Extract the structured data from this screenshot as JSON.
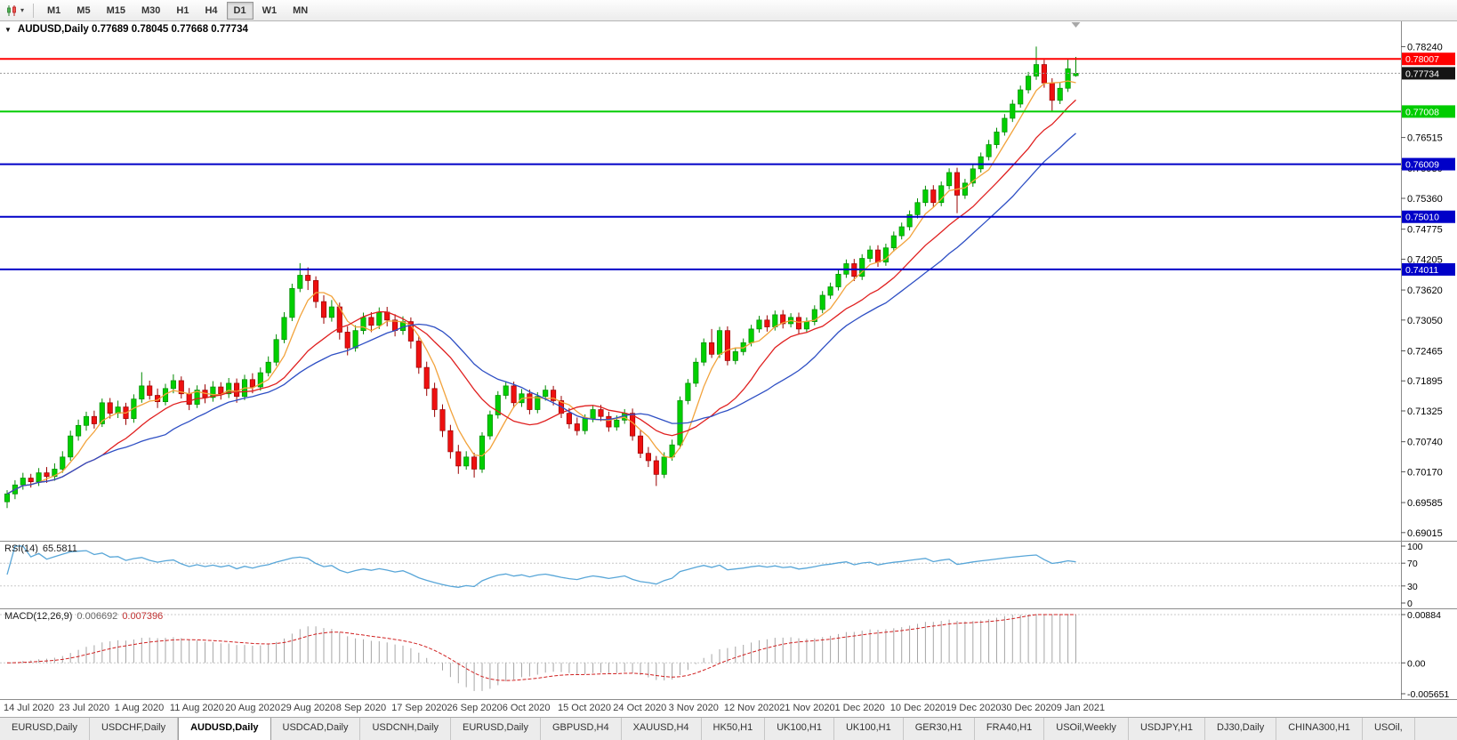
{
  "toolbar": {
    "timeframes": [
      "M1",
      "M5",
      "M15",
      "M30",
      "H1",
      "H4",
      "D1",
      "W1",
      "MN"
    ],
    "selected_timeframe": "D1"
  },
  "chart": {
    "title_text": "AUDUSD,Daily 0.77689 0.78045 0.77668 0.77734",
    "symbol": "AUDUSD,Daily",
    "ohlc": {
      "open": "0.77689",
      "high": "0.78045",
      "low": "0.77668",
      "close": "0.77734"
    }
  },
  "axis": {
    "price_ticks": [
      "0.78240",
      "0.76515",
      "0.75930",
      "0.75360",
      "0.74775",
      "0.74205",
      "0.73620",
      "0.73050",
      "0.72465",
      "0.71895",
      "0.71325",
      "0.70740",
      "0.70170",
      "0.69585",
      "0.69015"
    ],
    "current_price": {
      "value": 0.77734,
      "label": "0.77734",
      "badge_color": "#151515"
    }
  },
  "levels": [
    {
      "value": 0.78007,
      "label": "0.78007",
      "color": "#FF0000"
    },
    {
      "value": 0.77008,
      "label": "0.77008",
      "color": "#00CC00"
    },
    {
      "value": 0.76009,
      "label": "0.76009",
      "color": "#0000C8"
    },
    {
      "value": 0.7501,
      "label": "0.75010",
      "color": "#0000C8"
    },
    {
      "value": 0.74011,
      "label": "0.74011",
      "color": "#0000C8"
    }
  ],
  "chart_data": {
    "type": "candlestick",
    "symbol": "AUDUSD",
    "timeframe": "Daily",
    "y_range": [
      0.6886,
      0.7872
    ],
    "candle_colors": {
      "up": "#00CF00",
      "up_edge": "#008A00",
      "down": "#EE1010",
      "down_edge": "#990000"
    },
    "moving_averages": [
      {
        "name": "MA-fast",
        "period": 5,
        "color": "#F2A33C"
      },
      {
        "name": "MA-mid",
        "period": 13,
        "color": "#E02020"
      },
      {
        "name": "MA-slow",
        "period": 21,
        "color": "#2E4FC4"
      }
    ],
    "date_ticks": [
      {
        "label": "14 Jul 2020",
        "bar": 0
      },
      {
        "label": "23 Jul 2020",
        "bar": 7
      },
      {
        "label": "1 Aug 2020",
        "bar": 14
      },
      {
        "label": "11 Aug 2020",
        "bar": 21
      },
      {
        "label": "20 Aug 2020",
        "bar": 28
      },
      {
        "label": "29 Aug 2020",
        "bar": 35
      },
      {
        "label": "8 Sep 2020",
        "bar": 42
      },
      {
        "label": "17 Sep 2020",
        "bar": 49
      },
      {
        "label": "26 Sep 2020",
        "bar": 56
      },
      {
        "label": "6 Oct 2020",
        "bar": 63
      },
      {
        "label": "15 Oct 2020",
        "bar": 70
      },
      {
        "label": "24 Oct 2020",
        "bar": 77
      },
      {
        "label": "3 Nov 2020",
        "bar": 84
      },
      {
        "label": "12 Nov 2020",
        "bar": 91
      },
      {
        "label": "21 Nov 2020",
        "bar": 98
      },
      {
        "label": "1 Dec 2020",
        "bar": 105
      },
      {
        "label": "10 Dec 2020",
        "bar": 112
      },
      {
        "label": "19 Dec 2020",
        "bar": 119
      },
      {
        "label": "30 Dec 2020",
        "bar": 126
      },
      {
        "label": "9 Jan 2021",
        "bar": 133
      }
    ],
    "indicators": {
      "rsi": {
        "label": "RSI(14)",
        "value": "65.5811",
        "period": 14,
        "levels": [
          70,
          30
        ],
        "axis_labels": [
          "100",
          "70",
          "30",
          "0"
        ],
        "color": "#58A6D8",
        "range": [
          0,
          100
        ]
      },
      "macd": {
        "label": "MACD(12,26,9)",
        "value_main": "0.006692",
        "value_signal": "0.007396",
        "fast": 12,
        "slow": 26,
        "signal": 9,
        "axis_labels": [
          "0.00884",
          "0.00",
          "-0.005651"
        ],
        "range": [
          -0.005651,
          0.00884
        ],
        "hist_color": "#A6A6A6",
        "signal_color": "#D02020"
      }
    },
    "candles": [
      [
        0.696,
        0.6982,
        0.6948,
        0.6975
      ],
      [
        0.6975,
        0.7001,
        0.6965,
        0.6992
      ],
      [
        0.6992,
        0.7015,
        0.6983,
        0.7005
      ],
      [
        0.7005,
        0.7013,
        0.6987,
        0.6998
      ],
      [
        0.6998,
        0.7024,
        0.699,
        0.7015
      ],
      [
        0.7015,
        0.7026,
        0.6996,
        0.7008
      ],
      [
        0.7008,
        0.7033,
        0.7,
        0.7022
      ],
      [
        0.7022,
        0.7056,
        0.7015,
        0.7045
      ],
      [
        0.7045,
        0.7095,
        0.7038,
        0.7085
      ],
      [
        0.7085,
        0.7116,
        0.7076,
        0.7105
      ],
      [
        0.7105,
        0.7131,
        0.7095,
        0.7122
      ],
      [
        0.7122,
        0.7133,
        0.7099,
        0.7108
      ],
      [
        0.7108,
        0.7156,
        0.7102,
        0.7148
      ],
      [
        0.7148,
        0.7157,
        0.7118,
        0.7128
      ],
      [
        0.7128,
        0.7152,
        0.7119,
        0.714
      ],
      [
        0.714,
        0.7148,
        0.7106,
        0.7118
      ],
      [
        0.7118,
        0.7164,
        0.711,
        0.7155
      ],
      [
        0.7155,
        0.7206,
        0.7148,
        0.718
      ],
      [
        0.718,
        0.719,
        0.7154,
        0.7162
      ],
      [
        0.7162,
        0.7175,
        0.7138,
        0.715
      ],
      [
        0.715,
        0.7184,
        0.7143,
        0.7175
      ],
      [
        0.7175,
        0.7202,
        0.7166,
        0.719
      ],
      [
        0.719,
        0.7198,
        0.7156,
        0.7165
      ],
      [
        0.7165,
        0.7176,
        0.7134,
        0.7145
      ],
      [
        0.7145,
        0.7181,
        0.7138,
        0.7172
      ],
      [
        0.7172,
        0.7183,
        0.7147,
        0.7158
      ],
      [
        0.7158,
        0.7189,
        0.715,
        0.7178
      ],
      [
        0.7178,
        0.7187,
        0.7154,
        0.7165
      ],
      [
        0.7165,
        0.7195,
        0.7157,
        0.7185
      ],
      [
        0.7185,
        0.7194,
        0.7148,
        0.716
      ],
      [
        0.716,
        0.7201,
        0.7153,
        0.7192
      ],
      [
        0.7192,
        0.7204,
        0.7166,
        0.7178
      ],
      [
        0.7178,
        0.7215,
        0.7171,
        0.7205
      ],
      [
        0.7205,
        0.7236,
        0.7198,
        0.7225
      ],
      [
        0.7225,
        0.7278,
        0.7218,
        0.7268
      ],
      [
        0.7268,
        0.732,
        0.7261,
        0.731
      ],
      [
        0.731,
        0.7374,
        0.7303,
        0.7365
      ],
      [
        0.7365,
        0.7413,
        0.7358,
        0.739
      ],
      [
        0.739,
        0.7405,
        0.7362,
        0.738
      ],
      [
        0.738,
        0.7388,
        0.7328,
        0.734
      ],
      [
        0.734,
        0.7352,
        0.7298,
        0.731
      ],
      [
        0.731,
        0.7343,
        0.7302,
        0.733
      ],
      [
        0.733,
        0.7338,
        0.7268,
        0.7282
      ],
      [
        0.7282,
        0.7293,
        0.7238,
        0.7252
      ],
      [
        0.7252,
        0.7295,
        0.7245,
        0.7285
      ],
      [
        0.7285,
        0.7319,
        0.7278,
        0.731
      ],
      [
        0.731,
        0.732,
        0.7282,
        0.7295
      ],
      [
        0.7295,
        0.7329,
        0.7288,
        0.732
      ],
      [
        0.732,
        0.733,
        0.7293,
        0.7305
      ],
      [
        0.7305,
        0.7316,
        0.7274,
        0.7285
      ],
      [
        0.7285,
        0.7312,
        0.7277,
        0.7302
      ],
      [
        0.7302,
        0.731,
        0.7251,
        0.7265
      ],
      [
        0.7265,
        0.7274,
        0.7203,
        0.7215
      ],
      [
        0.7215,
        0.7226,
        0.7161,
        0.7175
      ],
      [
        0.7175,
        0.7186,
        0.7121,
        0.7135
      ],
      [
        0.7135,
        0.7145,
        0.7083,
        0.7095
      ],
      [
        0.7095,
        0.7106,
        0.7042,
        0.7055
      ],
      [
        0.7055,
        0.7068,
        0.7013,
        0.7028
      ],
      [
        0.7028,
        0.7056,
        0.7021,
        0.7045
      ],
      [
        0.7045,
        0.7053,
        0.7006,
        0.7022
      ],
      [
        0.7022,
        0.7092,
        0.7015,
        0.7085
      ],
      [
        0.7085,
        0.7133,
        0.7078,
        0.7125
      ],
      [
        0.7125,
        0.717,
        0.7118,
        0.7162
      ],
      [
        0.7162,
        0.7189,
        0.7155,
        0.718
      ],
      [
        0.718,
        0.7188,
        0.7138,
        0.7148
      ],
      [
        0.7148,
        0.7174,
        0.714,
        0.7165
      ],
      [
        0.7165,
        0.7173,
        0.7126,
        0.7135
      ],
      [
        0.7135,
        0.7168,
        0.7128,
        0.716
      ],
      [
        0.716,
        0.7181,
        0.7152,
        0.7172
      ],
      [
        0.7172,
        0.718,
        0.7143,
        0.7152
      ],
      [
        0.7152,
        0.7161,
        0.7119,
        0.7128
      ],
      [
        0.7128,
        0.7138,
        0.7099,
        0.7108
      ],
      [
        0.7108,
        0.712,
        0.7086,
        0.7095
      ],
      [
        0.7095,
        0.7126,
        0.7088,
        0.7118
      ],
      [
        0.7118,
        0.7143,
        0.7111,
        0.7135
      ],
      [
        0.7135,
        0.7144,
        0.7113,
        0.7122
      ],
      [
        0.7122,
        0.7131,
        0.7093,
        0.7102
      ],
      [
        0.7102,
        0.7124,
        0.7095,
        0.7115
      ],
      [
        0.7115,
        0.7136,
        0.7108,
        0.7128
      ],
      [
        0.7128,
        0.7137,
        0.7076,
        0.7085
      ],
      [
        0.7085,
        0.7096,
        0.7043,
        0.7052
      ],
      [
        0.7052,
        0.7064,
        0.7026,
        0.7038
      ],
      [
        0.7038,
        0.7047,
        0.699,
        0.7012
      ],
      [
        0.7012,
        0.7054,
        0.7005,
        0.7045
      ],
      [
        0.7045,
        0.7078,
        0.7038,
        0.7068
      ],
      [
        0.7068,
        0.716,
        0.7061,
        0.7152
      ],
      [
        0.7152,
        0.7193,
        0.7145,
        0.7185
      ],
      [
        0.7185,
        0.7233,
        0.7178,
        0.7225
      ],
      [
        0.7225,
        0.727,
        0.7218,
        0.7262
      ],
      [
        0.7262,
        0.7288,
        0.7233,
        0.724
      ],
      [
        0.724,
        0.7292,
        0.7233,
        0.7285
      ],
      [
        0.7285,
        0.7293,
        0.7219,
        0.7228
      ],
      [
        0.7228,
        0.7253,
        0.7221,
        0.7245
      ],
      [
        0.7245,
        0.727,
        0.7238,
        0.7262
      ],
      [
        0.7262,
        0.7296,
        0.7255,
        0.7288
      ],
      [
        0.7288,
        0.7313,
        0.7281,
        0.7305
      ],
      [
        0.7305,
        0.7314,
        0.7283,
        0.7292
      ],
      [
        0.7292,
        0.7323,
        0.7285,
        0.7315
      ],
      [
        0.7315,
        0.7324,
        0.7289,
        0.7298
      ],
      [
        0.7298,
        0.7318,
        0.7291,
        0.731
      ],
      [
        0.731,
        0.7319,
        0.7279,
        0.7288
      ],
      [
        0.7288,
        0.731,
        0.7281,
        0.7302
      ],
      [
        0.7302,
        0.7333,
        0.7295,
        0.7325
      ],
      [
        0.7325,
        0.736,
        0.7318,
        0.7352
      ],
      [
        0.7352,
        0.7376,
        0.7345,
        0.7368
      ],
      [
        0.7368,
        0.74,
        0.7361,
        0.7392
      ],
      [
        0.7392,
        0.742,
        0.7385,
        0.7412
      ],
      [
        0.7412,
        0.7421,
        0.7379,
        0.7388
      ],
      [
        0.7388,
        0.743,
        0.7381,
        0.7422
      ],
      [
        0.7422,
        0.7446,
        0.7415,
        0.7438
      ],
      [
        0.7438,
        0.7447,
        0.7406,
        0.7415
      ],
      [
        0.7415,
        0.745,
        0.7408,
        0.7442
      ],
      [
        0.7442,
        0.7473,
        0.7435,
        0.7465
      ],
      [
        0.7465,
        0.749,
        0.7458,
        0.7482
      ],
      [
        0.7482,
        0.7513,
        0.7475,
        0.7505
      ],
      [
        0.7505,
        0.7536,
        0.7498,
        0.7528
      ],
      [
        0.7528,
        0.756,
        0.7521,
        0.7552
      ],
      [
        0.7552,
        0.7561,
        0.7519,
        0.7528
      ],
      [
        0.7528,
        0.7568,
        0.7521,
        0.756
      ],
      [
        0.756,
        0.7593,
        0.7553,
        0.7585
      ],
      [
        0.7585,
        0.7594,
        0.7508,
        0.7542
      ],
      [
        0.7542,
        0.7573,
        0.7535,
        0.7565
      ],
      [
        0.7565,
        0.76,
        0.7558,
        0.7592
      ],
      [
        0.7592,
        0.7623,
        0.7585,
        0.7615
      ],
      [
        0.7615,
        0.7647,
        0.7608,
        0.7638
      ],
      [
        0.7638,
        0.767,
        0.7631,
        0.7662
      ],
      [
        0.7662,
        0.7696,
        0.7655,
        0.7688
      ],
      [
        0.7688,
        0.7723,
        0.7681,
        0.7715
      ],
      [
        0.7715,
        0.775,
        0.7708,
        0.7742
      ],
      [
        0.7742,
        0.7776,
        0.7735,
        0.7768
      ],
      [
        0.7768,
        0.7824,
        0.7761,
        0.779
      ],
      [
        0.779,
        0.7799,
        0.7746,
        0.7755
      ],
      [
        0.7755,
        0.7764,
        0.7702,
        0.7722
      ],
      [
        0.7722,
        0.7756,
        0.7715,
        0.7745
      ],
      [
        0.7745,
        0.78,
        0.7738,
        0.7782
      ],
      [
        0.77689,
        0.78045,
        0.77668,
        0.77734
      ]
    ]
  },
  "tabs": [
    {
      "label": "EURUSD,Daily",
      "selected": false
    },
    {
      "label": "USDCHF,Daily",
      "selected": false
    },
    {
      "label": "AUDUSD,Daily",
      "selected": true
    },
    {
      "label": "USDCAD,Daily",
      "selected": false
    },
    {
      "label": "USDCNH,Daily",
      "selected": false
    },
    {
      "label": "EURUSD,Daily",
      "selected": false
    },
    {
      "label": "GBPUSD,H4",
      "selected": false
    },
    {
      "label": "XAUUSD,H4",
      "selected": false
    },
    {
      "label": "HK50,H1",
      "selected": false
    },
    {
      "label": "UK100,H1",
      "selected": false
    },
    {
      "label": "UK100,H1",
      "selected": false
    },
    {
      "label": "GER30,H1",
      "selected": false
    },
    {
      "label": "FRA40,H1",
      "selected": false
    },
    {
      "label": "USOil,Weekly",
      "selected": false
    },
    {
      "label": "USDJPY,H1",
      "selected": false
    },
    {
      "label": "DJ30,Daily",
      "selected": false
    },
    {
      "label": "CHINA300,H1",
      "selected": false
    },
    {
      "label": "USOil,",
      "selected": false
    }
  ]
}
